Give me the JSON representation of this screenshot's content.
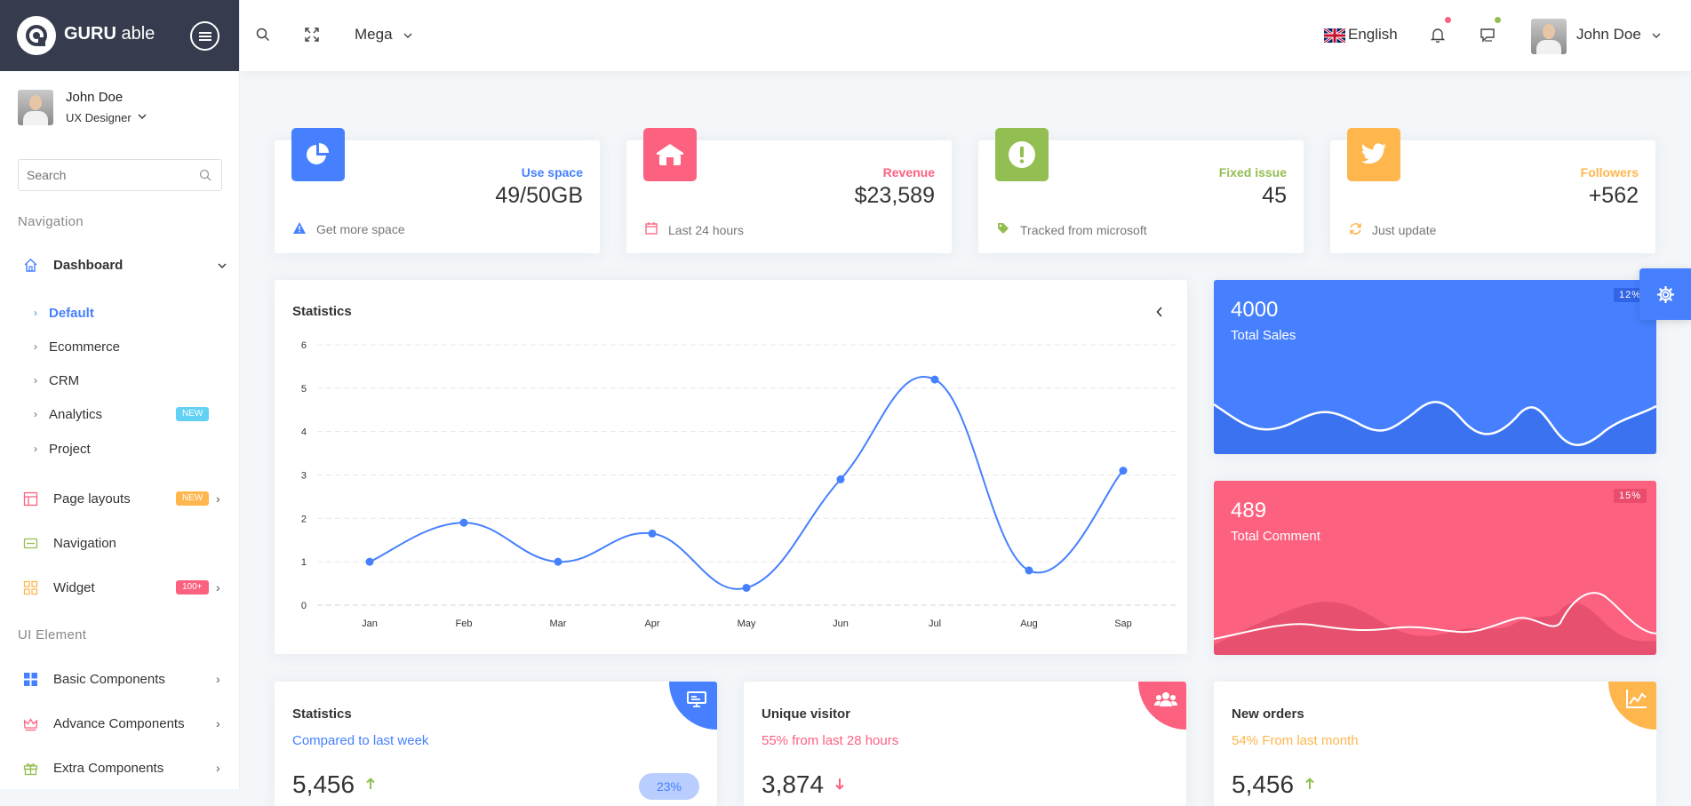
{
  "brand": {
    "name_bold": "GURU",
    "name_light": "able"
  },
  "user": {
    "name": "John Doe",
    "role": "UX Designer"
  },
  "sidebar": {
    "search_placeholder": "Search",
    "captions": {
      "navigation": "Navigation",
      "ui_element": "UI Element"
    },
    "dashboard": {
      "label": "Dashboard"
    },
    "dashboard_items": [
      {
        "label": "Default",
        "active": true
      },
      {
        "label": "Ecommerce"
      },
      {
        "label": "CRM"
      },
      {
        "label": "Analytics",
        "badge": "NEW"
      },
      {
        "label": "Project"
      }
    ],
    "page_layouts": {
      "label": "Page layouts",
      "badge": "NEW"
    },
    "navigation": {
      "label": "Navigation"
    },
    "widget": {
      "label": "Widget",
      "badge": "100+"
    },
    "basic_components": {
      "label": "Basic Components"
    },
    "advance_components": {
      "label": "Advance Components"
    },
    "extra_components": {
      "label": "Extra Components"
    }
  },
  "header": {
    "mega_label": "Mega",
    "language": "English",
    "user_name": "John Doe"
  },
  "stats": [
    {
      "label": "Use space",
      "value": "49/50GB",
      "foot": "Get more space",
      "color": "#4680ff",
      "icon": "pie-chart-icon",
      "foot_icon": "warning-icon"
    },
    {
      "label": "Revenue",
      "value": "$23,589",
      "foot": "Last 24 hours",
      "color": "#fc6180",
      "icon": "home-icon",
      "foot_icon": "calendar-icon"
    },
    {
      "label": "Fixed issue",
      "value": "45",
      "foot": "Tracked from microsoft",
      "color": "#93be52",
      "icon": "alert-icon",
      "foot_icon": "tag-icon"
    },
    {
      "label": "Followers",
      "value": "+562",
      "foot": "Just update",
      "color": "#ffb64d",
      "icon": "twitter-icon",
      "foot_icon": "refresh-icon"
    }
  ],
  "statistics_card": {
    "title": "Statistics"
  },
  "chart_data": {
    "type": "line",
    "categories": [
      "Jan",
      "Feb",
      "Mar",
      "Apr",
      "May",
      "Jun",
      "Jul",
      "Aug",
      "Sap"
    ],
    "values": [
      1,
      1.9,
      1,
      1.65,
      0.4,
      2.9,
      5.2,
      0.8,
      3.1
    ],
    "ylim": [
      0,
      6
    ],
    "yticks": [
      "0",
      "1",
      "2",
      "3",
      "4",
      "5",
      "6"
    ],
    "grid": true,
    "color": "#4680ff"
  },
  "sales_card": {
    "value": "4000",
    "label": "Total Sales",
    "badge": "12%",
    "color": "#4680ff"
  },
  "comment_card": {
    "value": "489",
    "label": "Total Comment",
    "badge": "15%",
    "color": "#fc6180"
  },
  "bottom_cards": [
    {
      "title": "Statistics",
      "subtitle": "Compared to last week",
      "value": "5,456",
      "trend": "up",
      "pill": "23%",
      "color": "#4680ff",
      "icon": "presentation-icon"
    },
    {
      "title": "Unique visitor",
      "subtitle": "55% from last 28 hours",
      "value": "3,874",
      "trend": "down",
      "color": "#fc6180",
      "icon": "users-icon"
    },
    {
      "title": "New orders",
      "subtitle": "54% From last month",
      "value": "5,456",
      "trend": "up",
      "color": "#ffb64d",
      "icon": "line-chart-icon"
    }
  ]
}
